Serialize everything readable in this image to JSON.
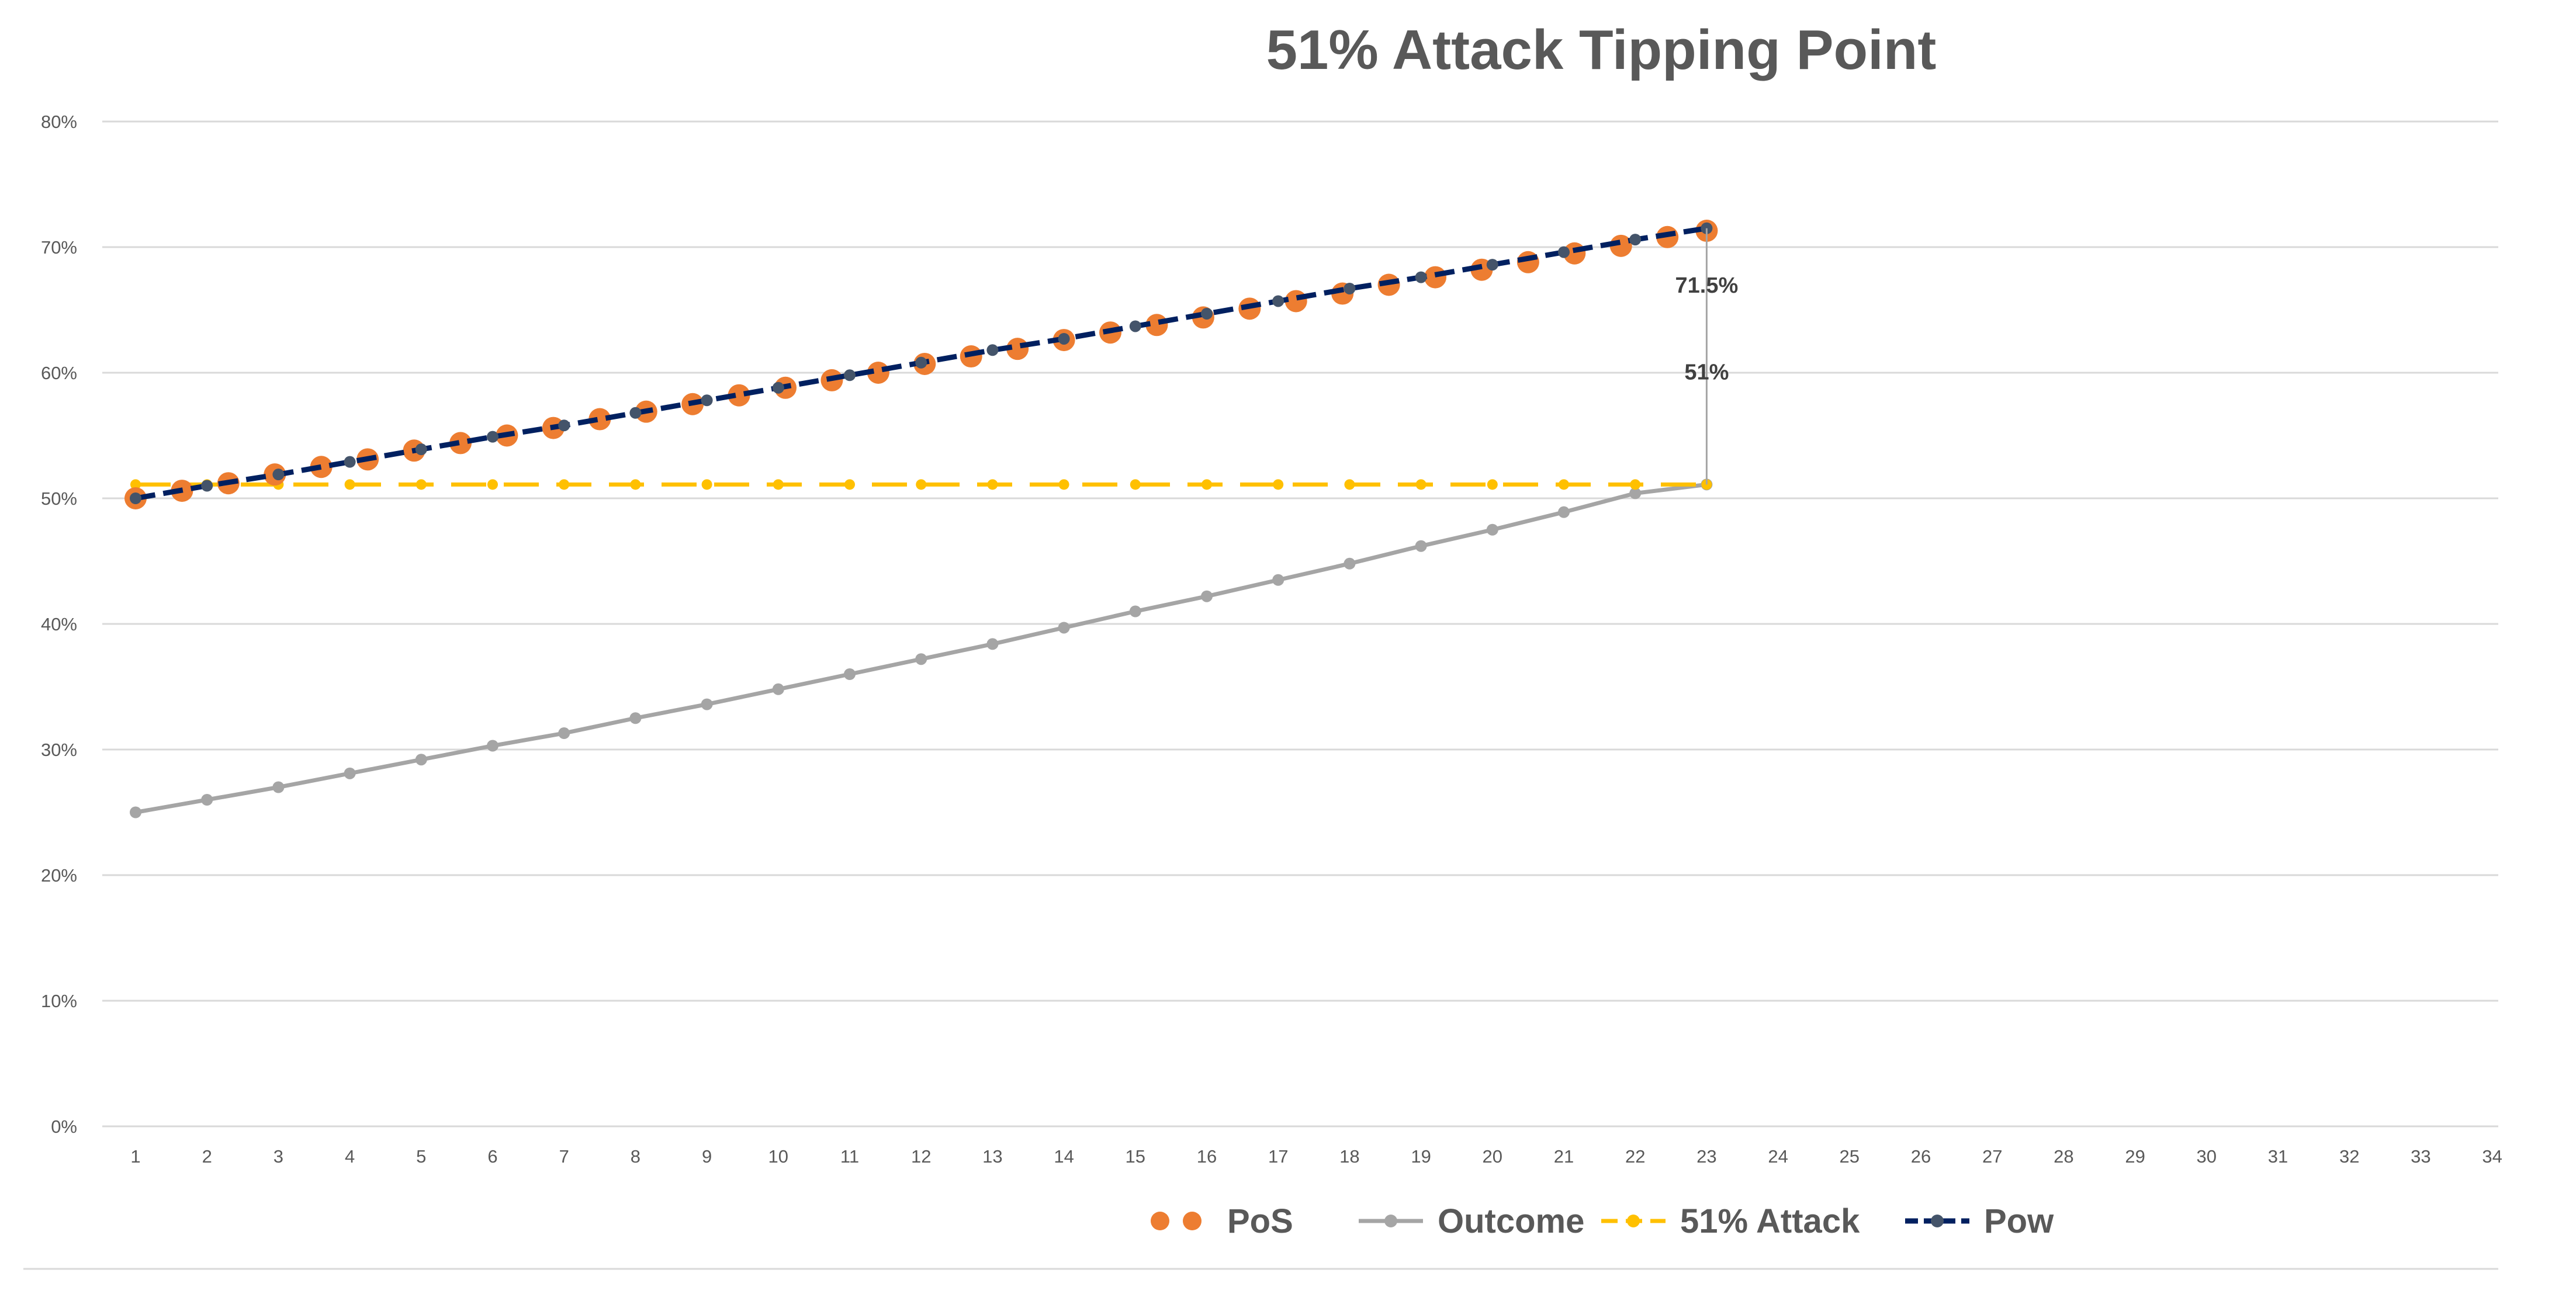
{
  "chart_data": {
    "type": "line",
    "title": "51%  Attack Tipping Point",
    "xlabel": "",
    "ylabel": "",
    "x_ticks": [
      "1",
      "2",
      "3",
      "4",
      "5",
      "6",
      "7",
      "8",
      "9",
      "10",
      "11",
      "12",
      "13",
      "14",
      "15",
      "16",
      "17",
      "18",
      "19",
      "20",
      "21",
      "22",
      "23",
      "24",
      "25",
      "26",
      "27",
      "28",
      "29",
      "30",
      "31",
      "32",
      "33",
      "34"
    ],
    "xlim": [
      1,
      34
    ],
    "y_ticks": [
      "0%",
      "10%",
      "20%",
      "30%",
      "40%",
      "50%",
      "60%",
      "70%",
      "80%"
    ],
    "ylim": [
      0,
      80
    ],
    "grid": "horizontal",
    "legend_position": "bottom",
    "series": [
      {
        "name": "PoS",
        "style": "dots",
        "color": "#ED7D31",
        "x": [
          1,
          1.65,
          2.3,
          2.95,
          3.6,
          4.25,
          4.9,
          5.55,
          6.2,
          6.85,
          7.5,
          8.15,
          8.8,
          9.45,
          10.1,
          10.75,
          11.4,
          12.05,
          12.7,
          13.35,
          14,
          14.65,
          15.3,
          15.95,
          16.6,
          17.25,
          17.9,
          18.55,
          19.2,
          19.85,
          20.5,
          21.15,
          21.8,
          22.45,
          23
        ],
        "y": [
          50,
          50.6,
          51.2,
          51.9,
          52.5,
          53.1,
          53.8,
          54.4,
          55,
          55.6,
          56.3,
          56.9,
          57.5,
          58.2,
          58.8,
          59.4,
          60,
          60.7,
          61.3,
          61.9,
          62.6,
          63.2,
          63.8,
          64.4,
          65.1,
          65.7,
          66.3,
          67,
          67.6,
          68.2,
          68.8,
          69.5,
          70.1,
          70.8,
          71.3
        ]
      },
      {
        "name": "Outcome",
        "style": "line-markers",
        "color": "#A5A5A5",
        "x": [
          1,
          2,
          3,
          4,
          5,
          6,
          7,
          8,
          9,
          10,
          11,
          12,
          13,
          14,
          15,
          16,
          17,
          18,
          19,
          20,
          21,
          22,
          23
        ],
        "y": [
          25,
          26,
          27,
          28.1,
          29.2,
          30.3,
          31.3,
          32.5,
          33.6,
          34.8,
          36,
          37.2,
          38.4,
          39.7,
          41,
          42.2,
          43.5,
          44.8,
          46.2,
          47.5,
          48.9,
          50.4,
          51.1
        ]
      },
      {
        "name": "51% Attack",
        "style": "dashed-markers",
        "color": "#FFC000",
        "x": [
          1,
          2,
          3,
          4,
          5,
          6,
          7,
          8,
          9,
          10,
          11,
          12,
          13,
          14,
          15,
          16,
          17,
          18,
          19,
          20,
          21,
          22,
          23
        ],
        "y": [
          51.1,
          51.1,
          51.1,
          51.1,
          51.1,
          51.1,
          51.1,
          51.1,
          51.1,
          51.1,
          51.1,
          51.1,
          51.1,
          51.1,
          51.1,
          51.1,
          51.1,
          51.1,
          51.1,
          51.1,
          51.1,
          51.1,
          51.1
        ]
      },
      {
        "name": "Pow",
        "style": "dashed-markers",
        "color": "#002060",
        "marker_color": "#44546A",
        "x": [
          1,
          2,
          3,
          4,
          5,
          6,
          7,
          8,
          9,
          10,
          11,
          12,
          13,
          14,
          15,
          16,
          17,
          18,
          19,
          20,
          21,
          22,
          23
        ],
        "y": [
          50,
          51,
          51.9,
          52.9,
          53.9,
          54.9,
          55.8,
          56.8,
          57.8,
          58.8,
          59.8,
          60.8,
          61.8,
          62.7,
          63.7,
          64.7,
          65.7,
          66.7,
          67.6,
          68.6,
          69.6,
          70.6,
          71.5
        ]
      }
    ],
    "annotations": [
      {
        "text": "71.5%",
        "x": 23,
        "y": 71.5
      },
      {
        "text": "51%",
        "x": 23,
        "y": 51.1
      }
    ]
  }
}
